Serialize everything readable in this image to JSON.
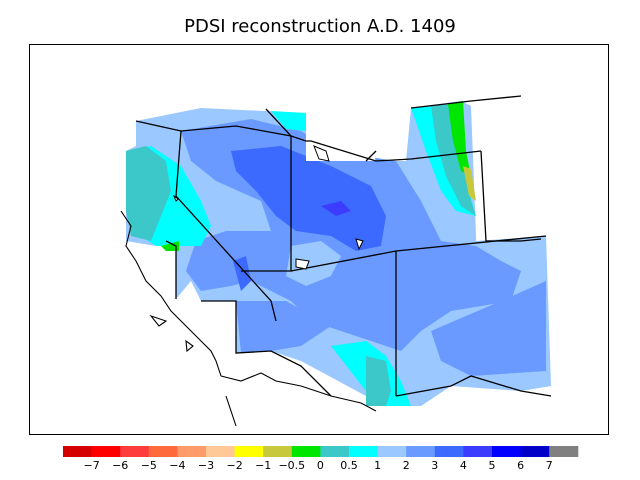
{
  "title": "PDSI reconstruction A.D. 1409",
  "legend": {
    "colors": [
      "#d40000",
      "#ff0000",
      "#ff3c3c",
      "#ff6a3c",
      "#ff9a6a",
      "#ffc896",
      "#ffff00",
      "#c8c83c",
      "#00e600",
      "#3cc8c8",
      "#00ffff",
      "#9ac8ff",
      "#6a9aff",
      "#3c6aff",
      "#3c3cff",
      "#0000ff",
      "#0000c8",
      "#808080"
    ],
    "labels": [
      "−7",
      "−6",
      "−5",
      "−4",
      "−3",
      "−2",
      "−1",
      "−0.5",
      "0",
      "0.5",
      "1",
      "2",
      "3",
      "4",
      "5",
      "6",
      "7"
    ]
  }
}
